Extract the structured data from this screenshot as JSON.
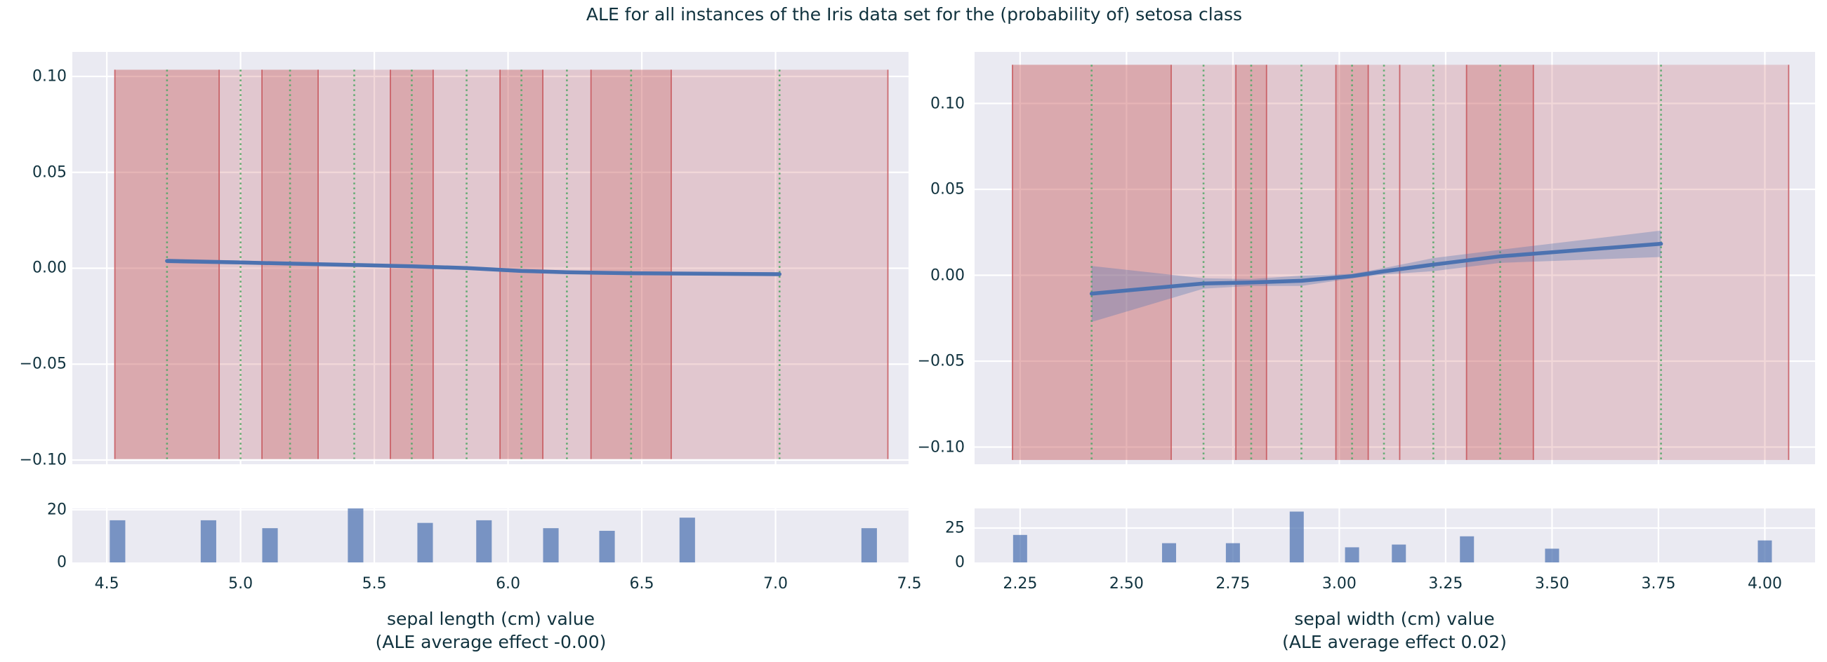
{
  "figure": {
    "title": "ALE for all instances of the Iris data set for the (probability of) setosa class"
  },
  "colors": {
    "page_bg": "#ffffff",
    "axes_bg": "#eaeaf2",
    "grid": "#ffffff",
    "text": "#10323e",
    "ale_line": "#4c72b0",
    "ci_fill": "rgba(76,114,176,0.32)",
    "band_light": "rgba(196,78,82,0.22)",
    "band_dark": "rgba(196,78,82,0.42)",
    "band_edge": "rgba(196,78,82,0.8)",
    "quantile_line": "#55a868",
    "hist_bar": "rgba(76,114,176,0.72)"
  },
  "chart_data": [
    {
      "id": "ale-sepal-length",
      "type": "line",
      "feature": "sepal length (cm)",
      "target_class": "setosa",
      "ale_average_effect": "-0.00",
      "xlabel_line1": "sepal length (cm) value",
      "xlabel_line2": "(ALE average effect -0.00)",
      "xlim": [
        4.371,
        7.5
      ],
      "ylim": [
        -0.1022,
        0.1128
      ],
      "grid": true,
      "x_ticks": [
        {
          "v": 4.5,
          "label": "4.5"
        },
        {
          "v": 5.0,
          "label": "5.0"
        },
        {
          "v": 5.5,
          "label": "5.5"
        },
        {
          "v": 6.0,
          "label": "6.0"
        },
        {
          "v": 6.5,
          "label": "6.5"
        },
        {
          "v": 7.0,
          "label": "7.0"
        },
        {
          "v": 7.5,
          "label": "7.5"
        }
      ],
      "y_ticks": [
        {
          "v": 0.1,
          "label": "0.10"
        },
        {
          "v": 0.05,
          "label": "0.05"
        },
        {
          "v": 0.0,
          "label": "0.00"
        },
        {
          "v": -0.05,
          "label": "−0.05"
        },
        {
          "v": -0.1,
          "label": "−0.10"
        }
      ],
      "band_span": [
        -0.0995,
        0.1035
      ],
      "bin_edges": [
        4.53,
        4.92,
        5.08,
        5.29,
        5.56,
        5.72,
        5.97,
        6.13,
        6.31,
        6.61,
        7.42
      ],
      "bin_shades": [
        "dark",
        "light",
        "dark",
        "light",
        "dark",
        "light",
        "dark",
        "light",
        "dark",
        "light"
      ],
      "bin_centers": [
        4.725,
        5.0,
        5.185,
        5.425,
        5.64,
        5.845,
        6.05,
        6.22,
        6.46,
        7.015
      ],
      "ale": {
        "x": [
          4.725,
          5.0,
          5.185,
          5.425,
          5.64,
          5.845,
          6.05,
          6.22,
          6.46,
          7.015
        ],
        "y": [
          0.0038,
          0.003,
          0.0024,
          0.0017,
          0.001,
          0.0001,
          -0.0014,
          -0.0021,
          -0.0026,
          -0.0031
        ],
        "ci_hi": [
          0.005,
          0.004,
          0.0032,
          0.0024,
          0.0016,
          0.0007,
          -0.0007,
          -0.0014,
          -0.0019,
          -0.0021
        ],
        "ci_lo": [
          0.0026,
          0.002,
          0.0016,
          0.001,
          0.0004,
          -0.0005,
          -0.0021,
          -0.0028,
          -0.0033,
          -0.0041
        ]
      },
      "hist": {
        "x": [
          4.54,
          4.88,
          5.11,
          5.43,
          5.69,
          5.91,
          6.16,
          6.37,
          6.67,
          7.35
        ],
        "counts": [
          16,
          16,
          13,
          21,
          15,
          16,
          13,
          12,
          17,
          13
        ],
        "bar_width": 0.058,
        "ylim": [
          0,
          20.5
        ],
        "y_ticks": [
          {
            "v": 0,
            "label": "0"
          },
          {
            "v": 20,
            "label": "20"
          }
        ]
      }
    },
    {
      "id": "ale-sepal-width",
      "type": "line",
      "feature": "sepal width (cm)",
      "target_class": "setosa",
      "ale_average_effect": "0.02",
      "xlabel_line1": "sepal width (cm) value",
      "xlabel_line2": "(ALE average effect 0.02)",
      "xlim": [
        2.143,
        4.118
      ],
      "ylim": [
        -0.11,
        0.13
      ],
      "grid": true,
      "x_ticks": [
        {
          "v": 2.25,
          "label": "2.25"
        },
        {
          "v": 2.5,
          "label": "2.50"
        },
        {
          "v": 2.75,
          "label": "2.75"
        },
        {
          "v": 3.0,
          "label": "3.00"
        },
        {
          "v": 3.25,
          "label": "3.25"
        },
        {
          "v": 3.5,
          "label": "3.50"
        },
        {
          "v": 3.75,
          "label": "3.75"
        },
        {
          "v": 4.0,
          "label": "4.00"
        }
      ],
      "y_ticks": [
        {
          "v": 0.1,
          "label": "0.10"
        },
        {
          "v": 0.05,
          "label": "0.05"
        },
        {
          "v": 0.0,
          "label": "0.00"
        },
        {
          "v": -0.05,
          "label": "−0.05"
        },
        {
          "v": -0.1,
          "label": "−0.10"
        }
      ],
      "band_span": [
        -0.1075,
        0.1225
      ],
      "bin_edges": [
        2.232,
        2.605,
        2.757,
        2.829,
        2.992,
        3.068,
        3.142,
        3.299,
        3.456,
        4.056
      ],
      "bin_shades": [
        "dark",
        "light",
        "dark",
        "light",
        "dark",
        "light",
        "light",
        "dark",
        "light"
      ],
      "bin_centers": [
        2.418,
        2.681,
        2.793,
        2.911,
        3.03,
        3.105,
        3.221,
        3.378,
        3.756
      ],
      "ale": {
        "x": [
          2.418,
          2.681,
          2.793,
          2.911,
          3.03,
          3.105,
          3.221,
          3.378,
          3.756
        ],
        "y": [
          -0.0107,
          -0.0048,
          -0.0042,
          -0.0032,
          -0.0005,
          0.0023,
          0.0062,
          0.011,
          0.0183
        ],
        "ci_hi": [
          0.0054,
          -0.0018,
          -0.0022,
          -0.0002,
          0.0008,
          0.0042,
          0.01,
          0.0148,
          0.026
        ],
        "ci_lo": [
          -0.0272,
          -0.0078,
          -0.0062,
          -0.0062,
          -0.0018,
          0.0004,
          0.0024,
          0.0072,
          0.0106
        ]
      },
      "hist": {
        "x": [
          2.25,
          2.6,
          2.75,
          2.9,
          3.03,
          3.14,
          3.3,
          3.5,
          4.0
        ],
        "counts": [
          20,
          14,
          14,
          37,
          11,
          13,
          19,
          10,
          16
        ],
        "bar_width": 0.033,
        "ylim": [
          0,
          39.3
        ],
        "y_ticks": [
          {
            "v": 0,
            "label": "0"
          },
          {
            "v": 25,
            "label": "25"
          }
        ]
      }
    }
  ]
}
